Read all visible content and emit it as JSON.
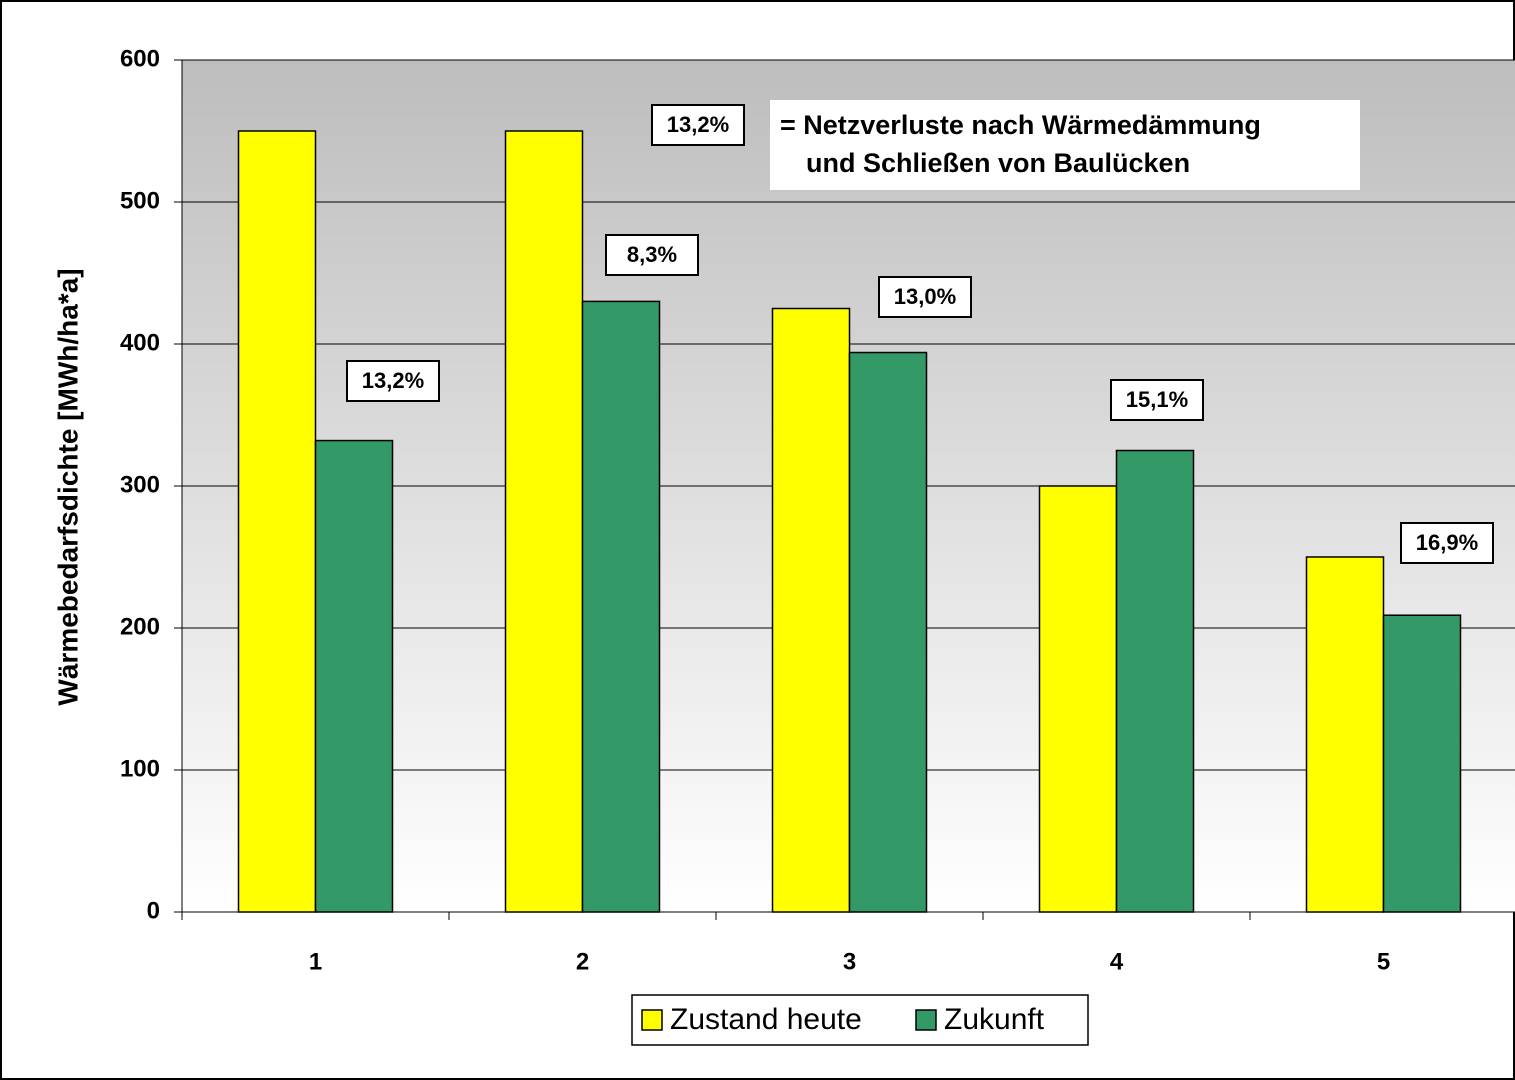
{
  "chart_data": {
    "type": "bar",
    "y_label": "Wärmebedarfsdichte [MWh/ha*a]",
    "categories": [
      "1",
      "2",
      "3",
      "4",
      "5"
    ],
    "series": [
      {
        "name": "Zustand heute",
        "color": "#ffff00",
        "values": [
          550,
          550,
          425,
          300,
          250
        ]
      },
      {
        "name": "Zukunft",
        "color": "#339966",
        "values": [
          332,
          430,
          394,
          325,
          209
        ]
      }
    ],
    "ylim": [
      0,
      600
    ],
    "yticks": [
      0,
      100,
      200,
      300,
      400,
      500,
      600
    ],
    "grid": true,
    "annotations": [
      "13,2%",
      "8,3%",
      "13,0%",
      "15,1%",
      "16,9%"
    ],
    "key_label": "13,2%",
    "key_text": [
      "= Netzverluste nach Wärmedämmung",
      "und Schließen von Baulücken"
    ]
  }
}
